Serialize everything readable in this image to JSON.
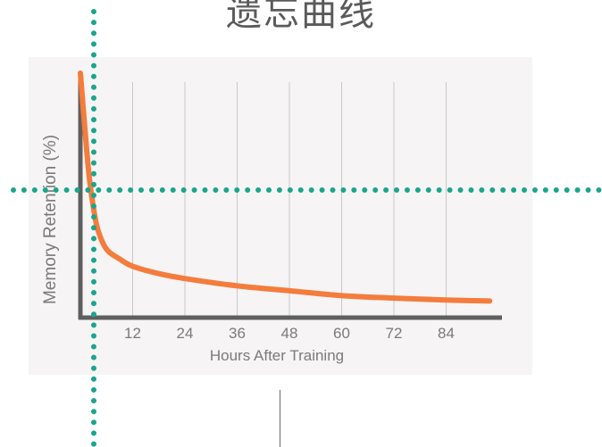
{
  "page": {
    "title": "遗忘曲线"
  },
  "chart_data": {
    "type": "line",
    "title": "",
    "xlabel": "Hours After Training",
    "ylabel": "Memory Retention (%)",
    "x_ticks": [
      12,
      24,
      36,
      48,
      60,
      72,
      84
    ],
    "xlim": [
      0,
      96
    ],
    "ylim": [
      0,
      100
    ],
    "grid": "vertical",
    "series": [
      {
        "color": "#f47c3c",
        "points": [
          {
            "x": 0,
            "y": 100
          },
          {
            "x": 1,
            "y": 78
          },
          {
            "x": 2,
            "y": 58
          },
          {
            "x": 3,
            "y": 45
          },
          {
            "x": 4,
            "y": 36
          },
          {
            "x": 6,
            "y": 28
          },
          {
            "x": 9,
            "y": 24
          },
          {
            "x": 12,
            "y": 21
          },
          {
            "x": 18,
            "y": 18
          },
          {
            "x": 24,
            "y": 16
          },
          {
            "x": 36,
            "y": 13
          },
          {
            "x": 48,
            "y": 11
          },
          {
            "x": 60,
            "y": 9
          },
          {
            "x": 72,
            "y": 8
          },
          {
            "x": 84,
            "y": 7.2
          },
          {
            "x": 94,
            "y": 6.8
          }
        ]
      }
    ],
    "colors": {
      "axis": "#5f5f5f",
      "grid": "#c9c9c9",
      "text": "#7a7a7a"
    }
  },
  "overlay": {
    "guide_color": "#1aa58c"
  }
}
